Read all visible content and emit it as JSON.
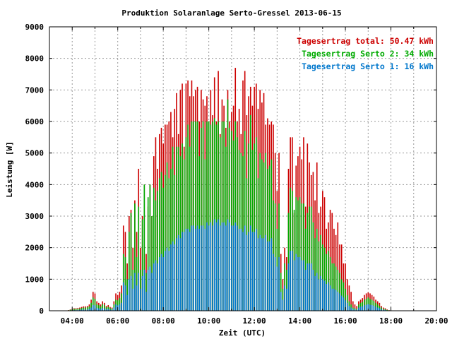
{
  "chart_data": {
    "type": "bar",
    "title": "Produktion Solaranlage Serto-Gressel 2013-06-15",
    "xlabel": "Zeit (UTC)",
    "ylabel": "Leistung [W]",
    "ylim": [
      0,
      9000
    ],
    "xlim_hours": [
      3.0,
      20.0
    ],
    "y_ticks": [
      "0",
      "1000",
      "2000",
      "3000",
      "4000",
      "5000",
      "6000",
      "7000",
      "8000",
      "9000"
    ],
    "x_ticks": [
      "04:00",
      "06:00",
      "08:00",
      "10:00",
      "12:00",
      "14:00",
      "16:00",
      "18:00",
      "20:00"
    ],
    "grid": true,
    "legend_position": "top-right",
    "series": [
      {
        "name": "Tagesertrag total: 50.47 kWh",
        "color": "#cc0000",
        "x_start": "03:45",
        "interval_minutes": 5,
        "values": [
          0,
          20,
          40,
          60,
          80,
          80,
          90,
          100,
          120,
          140,
          140,
          150,
          200,
          350,
          600,
          550,
          300,
          250,
          200,
          300,
          250,
          150,
          180,
          120,
          100,
          300,
          550,
          500,
          600,
          800,
          2700,
          2500,
          1500,
          3000,
          3200,
          2000,
          3500,
          2500,
          4500,
          2000,
          3000,
          4000,
          1800,
          3300,
          4000,
          3000,
          4900,
          5500,
          4500,
          5600,
          5800,
          5300,
          5900,
          5900,
          6000,
          6300,
          5500,
          6400,
          6900,
          5600,
          7000,
          7200,
          5200,
          7200,
          7300,
          6800,
          7300,
          6800,
          7000,
          7100,
          6000,
          7000,
          6700,
          6500,
          6800,
          6000,
          7000,
          6200,
          7400,
          6000,
          7600,
          5600,
          6700,
          6500,
          5800,
          7000,
          6000,
          6300,
          6500,
          7700,
          6000,
          6400,
          5600,
          7300,
          7600,
          6200,
          6800,
          7100,
          6500,
          7100,
          7200,
          6400,
          7000,
          6600,
          6900,
          5900,
          6100,
          5900,
          6000,
          5900,
          5000,
          3800,
          5000,
          1800,
          1000,
          2000,
          1700,
          4500,
          5500,
          5500,
          3100,
          4600,
          4900,
          5200,
          4800,
          5500,
          3300,
          5300,
          4700,
          4300,
          4400,
          3500,
          4700,
          3100,
          3300,
          3800,
          3600,
          2600,
          2800,
          3200,
          3100,
          2600,
          2400,
          2800,
          2100,
          2100,
          1500,
          1500,
          1000,
          800,
          600,
          300,
          200,
          150,
          300,
          350,
          400,
          500,
          550,
          580,
          550,
          500,
          450,
          350,
          300,
          250,
          150,
          100,
          80,
          40,
          20,
          10,
          0
        ]
      },
      {
        "name": "Tagesertrag Serto 2: 34 kWh",
        "color": "#00aa00",
        "x_start": "03:45",
        "interval_minutes": 5,
        "values": [
          0,
          15,
          30,
          45,
          60,
          60,
          65,
          70,
          85,
          100,
          100,
          110,
          140,
          250,
          420,
          380,
          210,
          175,
          140,
          210,
          175,
          105,
          125,
          85,
          70,
          200,
          350,
          330,
          400,
          550,
          1800,
          1700,
          1000,
          2500,
          3100,
          1300,
          3400,
          1700,
          3300,
          1300,
          2900,
          4000,
          1200,
          3600,
          4000,
          3000,
          3900,
          3500,
          3800,
          4200,
          4400,
          3900,
          4300,
          4700,
          4200,
          4500,
          5200,
          4300,
          5200,
          5200,
          4900,
          5300,
          4800,
          5500,
          5900,
          5200,
          6000,
          6000,
          6000,
          6000,
          4900,
          5800,
          6000,
          4800,
          6000,
          6000,
          5900,
          6000,
          6100,
          5900,
          6000,
          5500,
          6000,
          6000,
          5200,
          6700,
          5800,
          5700,
          5400,
          6000,
          5500,
          5100,
          5000,
          4900,
          5700,
          4200,
          5300,
          6200,
          5100,
          5300,
          5500,
          4200,
          5000,
          4800,
          4700,
          5000,
          4500,
          4600,
          4800,
          3500,
          3400,
          2600,
          3400,
          1200,
          700,
          1500,
          1300,
          3100,
          3900,
          3800,
          3200,
          3600,
          3500,
          3600,
          3400,
          3400,
          2600,
          3100,
          3300,
          3300,
          2800,
          2300,
          2600,
          2200,
          2400,
          2100,
          2000,
          1800,
          1900,
          1700,
          1500,
          1500,
          1400,
          1300,
          1200,
          1000,
          900,
          700,
          500,
          300,
          200,
          100,
          80,
          60,
          200,
          250,
          280,
          350,
          380,
          420,
          380,
          350,
          310,
          250,
          200,
          150,
          100,
          60,
          50,
          25,
          15,
          5,
          0
        ]
      },
      {
        "name": "Tagesertrag Serto 1: 16 kWh",
        "color": "#0077cc",
        "x_start": "03:45",
        "interval_minutes": 5,
        "values": [
          0,
          5,
          10,
          15,
          20,
          20,
          25,
          30,
          35,
          40,
          40,
          40,
          60,
          100,
          180,
          170,
          90,
          75,
          60,
          90,
          75,
          45,
          55,
          35,
          30,
          100,
          200,
          170,
          200,
          250,
          900,
          800,
          500,
          1000,
          1100,
          700,
          1200,
          800,
          1200,
          700,
          1100,
          1300,
          600,
          1300,
          1400,
          1200,
          1500,
          1600,
          1500,
          1700,
          1800,
          1700,
          1900,
          2000,
          1900,
          2100,
          2200,
          2100,
          2300,
          2400,
          2300,
          2500,
          2500,
          2600,
          2600,
          2500,
          2700,
          2700,
          2600,
          2700,
          2600,
          2700,
          2700,
          2600,
          2800,
          2700,
          2800,
          2700,
          2900,
          2800,
          2900,
          2700,
          2800,
          2800,
          2700,
          2900,
          2800,
          2700,
          2700,
          2800,
          2700,
          2600,
          2600,
          2500,
          2700,
          2400,
          2500,
          2700,
          2500,
          2500,
          2600,
          2300,
          2400,
          2300,
          2300,
          2400,
          2200,
          2200,
          2300,
          1800,
          1700,
          1400,
          1700,
          600,
          350,
          800,
          700,
          1500,
          1900,
          1900,
          1600,
          1800,
          1700,
          1700,
          1600,
          1600,
          1300,
          1500,
          1500,
          1500,
          1300,
          1100,
          1200,
          1000,
          1100,
          1000,
          950,
          850,
          900,
          800,
          700,
          700,
          650,
          600,
          550,
          480,
          420,
          330,
          250,
          150,
          100,
          50,
          40,
          30,
          100,
          130,
          140,
          180,
          190,
          210,
          190,
          180,
          160,
          130,
          100,
          80,
          50,
          30,
          25,
          12,
          8,
          3,
          0
        ]
      }
    ]
  }
}
